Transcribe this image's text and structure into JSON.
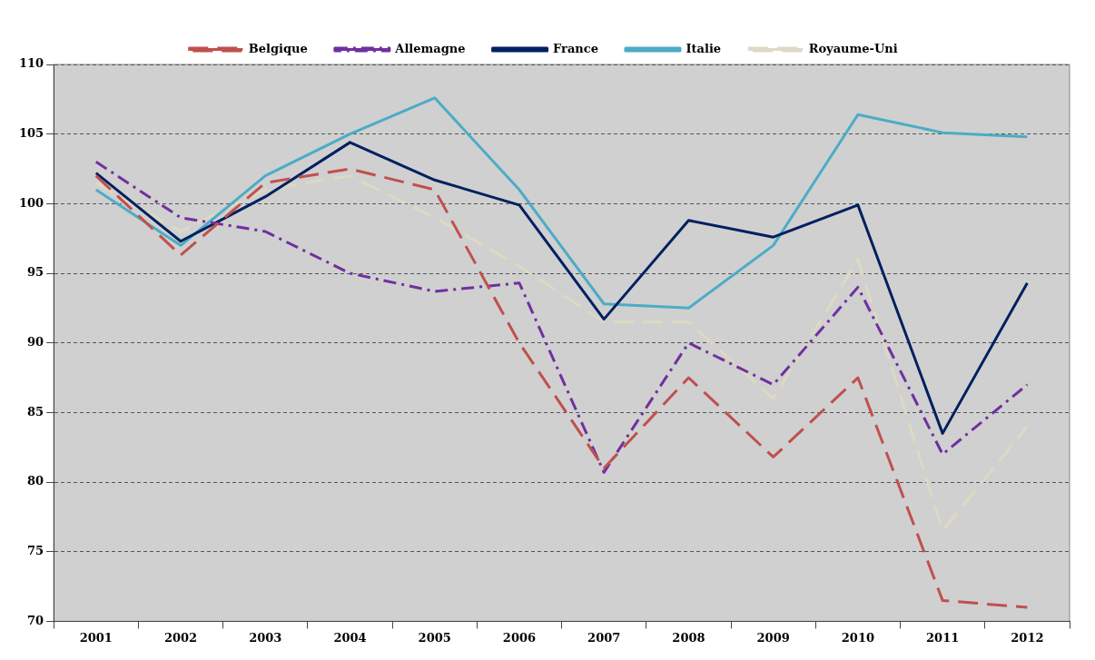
{
  "chart_data": {
    "type": "line",
    "categories": [
      "2001",
      "2002",
      "2003",
      "2004",
      "2005",
      "2006",
      "2007",
      "2008",
      "2009",
      "2010",
      "2011",
      "2012"
    ],
    "series": [
      {
        "name": "Belgique",
        "color": "#c0504d",
        "line_style": "dashed",
        "values": [
          102,
          96.3,
          101.5,
          102.5,
          101,
          90,
          81,
          87.5,
          81.8,
          87.5,
          71.5,
          71
        ]
      },
      {
        "name": "Allemagne",
        "color": "#7030a0",
        "line_style": "dashdot",
        "values": [
          103,
          99,
          98,
          95,
          93.7,
          94.3,
          80.7,
          90,
          87,
          94,
          82,
          87
        ]
      },
      {
        "name": "France",
        "color": "#002060",
        "line_style": "solid",
        "values": [
          102.2,
          97.3,
          100.5,
          104.4,
          101.7,
          99.9,
          91.7,
          98.8,
          97.6,
          99.9,
          83.5,
          94.3
        ]
      },
      {
        "name": "Italie",
        "color": "#4bacc6",
        "line_style": "solid",
        "values": [
          101,
          97,
          102,
          105,
          107.6,
          101,
          92.8,
          92.5,
          97,
          106.4,
          105.1,
          104.8
        ]
      },
      {
        "name": "Royaume-Uni",
        "color": "#ddd9c3",
        "line_style": "dashed",
        "values": [
          101.5,
          98,
          101,
          102,
          99,
          95.5,
          91.5,
          91.5,
          86,
          96,
          76.5,
          84
        ]
      }
    ],
    "ylim": [
      70,
      110
    ],
    "yticks": [
      70,
      75,
      80,
      85,
      90,
      95,
      100,
      105,
      110
    ],
    "grid": "y",
    "legend": "top",
    "marker": "none"
  }
}
